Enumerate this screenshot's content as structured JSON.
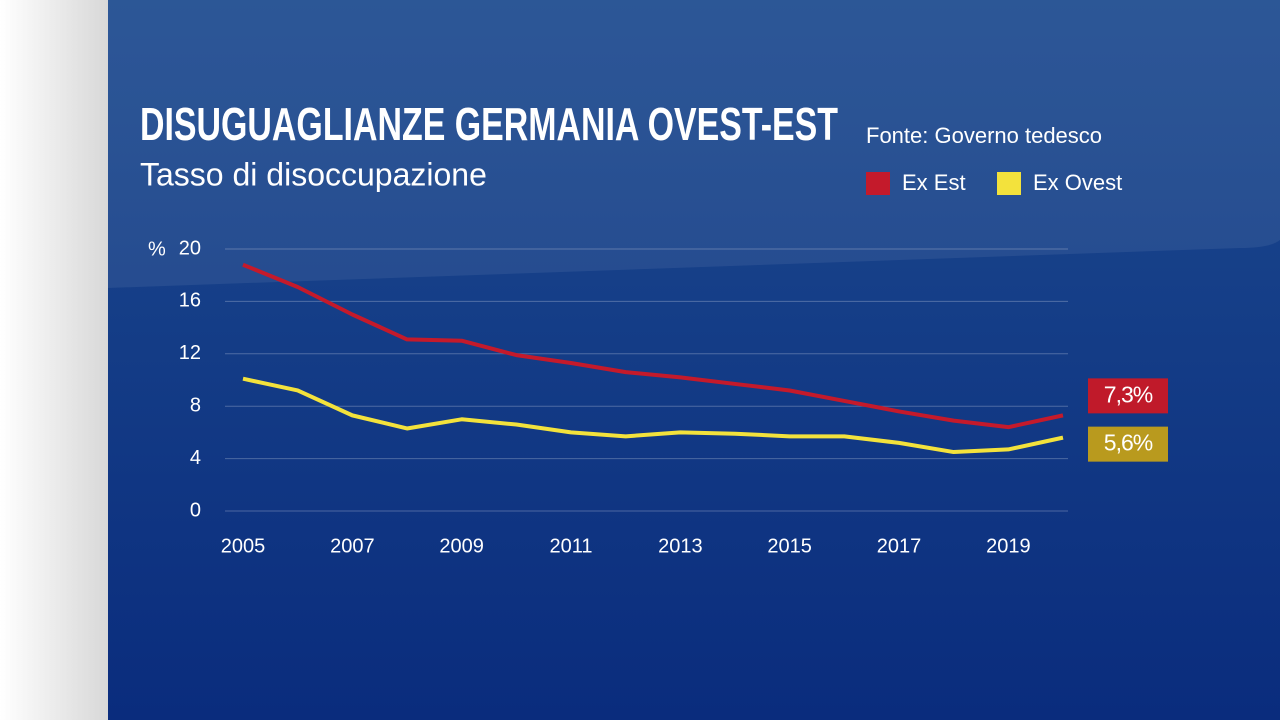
{
  "chart_data": {
    "type": "line",
    "title": "DISUGUAGLIANZE GERMANIA OVEST-EST",
    "subtitle": "Tasso di disoccupazione",
    "source": "Fonte: Governo tedesco",
    "y_unit": "%",
    "x": [
      2005,
      2006,
      2007,
      2008,
      2009,
      2010,
      2011,
      2012,
      2013,
      2014,
      2015,
      2016,
      2017,
      2018,
      2019,
      2020
    ],
    "xlim": [
      2005,
      2020
    ],
    "xticks": [
      2005,
      2007,
      2009,
      2011,
      2013,
      2015,
      2017,
      2019
    ],
    "ylim": [
      0,
      20
    ],
    "yticks": [
      0,
      4,
      8,
      12,
      16,
      20
    ],
    "grid": true,
    "legend": "top-right",
    "series": [
      {
        "name": "Ex Est",
        "color": "#c41a2b",
        "label_color": "#c01a2a",
        "values": [
          18.8,
          17.1,
          15.0,
          13.1,
          13.0,
          11.9,
          11.3,
          10.6,
          10.2,
          9.7,
          9.2,
          8.4,
          7.6,
          6.9,
          6.4,
          7.3
        ],
        "value_labels": [
          null,
          null,
          null,
          null,
          null,
          null,
          null,
          null,
          null,
          null,
          null,
          null,
          null,
          null,
          null,
          "7,3%"
        ]
      },
      {
        "name": "Ex Ovest",
        "color": "#f3e23c",
        "label_color": "#b99a1e",
        "values": [
          10.1,
          9.2,
          7.3,
          6.3,
          7.0,
          6.6,
          6.0,
          5.7,
          6.0,
          5.9,
          5.7,
          5.7,
          5.2,
          4.5,
          4.7,
          5.6
        ],
        "value_labels": [
          null,
          null,
          null,
          null,
          null,
          null,
          null,
          null,
          null,
          null,
          null,
          null,
          null,
          null,
          null,
          "5,6%"
        ]
      }
    ]
  }
}
